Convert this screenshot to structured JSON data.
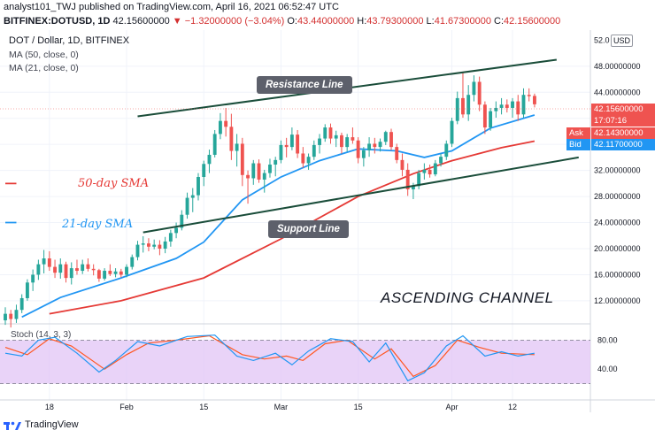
{
  "header": {
    "publish_line": "analyst101_TWJ published on TradingView.com, April 16, 2021 06:52:47 UTC",
    "symbol": "BITFINEX:DOTUSD, 1D",
    "last": "42.15600000",
    "arrow": "▼",
    "change": "−1.32000000 (−3.04%)",
    "o_label": "O:",
    "o": "43.44000000",
    "h_label": "H:",
    "h": "43.79300000",
    "l_label": "L:",
    "l": "41.67300000",
    "c_label": "C:",
    "c": "42.15600000"
  },
  "legend": {
    "title": "DOT / Dollar, 1D, BITFINEX",
    "ma50": "MA (50, close, 0)",
    "ma21": "MA (21, close, 0)"
  },
  "annotations": {
    "sma50": "50-day SMA",
    "sma21": "21-day SMA",
    "resistance": "Resistance Line",
    "support": "Support Line",
    "channel": "ASCENDING CHANNEL"
  },
  "axis": {
    "currency": "USD",
    "top_partial": "52.0",
    "price_ticks": [
      "48.00000000",
      "44.00000000",
      "40.00000000",
      "36.00000000",
      "32.00000000",
      "28.00000000",
      "24.00000000",
      "20.00000000",
      "16.00000000",
      "12.00000000"
    ],
    "date_ticks": [
      "18",
      "Feb",
      "15",
      "Mar",
      "15",
      "Apr",
      "12"
    ]
  },
  "tags": {
    "last": "42.15600000",
    "countdown": "17:07:16",
    "ask_label": "Ask",
    "ask": "42.14300000",
    "bid_label": "Bid",
    "bid": "42.11700000"
  },
  "stoch": {
    "label": "Stoch (14, 3, 3)",
    "ticks": [
      "80.00",
      "40.00"
    ],
    "upper": 80,
    "lower": 20
  },
  "footer": {
    "brand": "TradingView"
  },
  "colors": {
    "up": "#26a69a",
    "down": "#ef5350",
    "ma50": "#e53935",
    "ma21": "#2196f3",
    "trend": "#1a4d3a",
    "stoch_k": "#2196f3",
    "stoch_d": "#ff5722",
    "stoch_band": "#e1c4f5"
  },
  "chart_data": {
    "type": "candlestick",
    "title": "DOT / Dollar, 1D, BITFINEX",
    "ylim": [
      9,
      53
    ],
    "x_range": [
      "2021-01-10",
      "2021-04-25"
    ],
    "candles": [
      {
        "d": "2021-01-10",
        "o": 9.0,
        "h": 11.0,
        "l": 8.3,
        "c": 10.0
      },
      {
        "d": "2021-01-11",
        "o": 10.0,
        "h": 10.6,
        "l": 7.9,
        "c": 9.2
      },
      {
        "d": "2021-01-12",
        "o": 9.2,
        "h": 11.4,
        "l": 8.6,
        "c": 10.6
      },
      {
        "d": "2021-01-13",
        "o": 10.6,
        "h": 13.0,
        "l": 10.1,
        "c": 12.4
      },
      {
        "d": "2021-01-14",
        "o": 12.4,
        "h": 15.3,
        "l": 12.0,
        "c": 14.8
      },
      {
        "d": "2021-01-15",
        "o": 14.8,
        "h": 16.8,
        "l": 13.5,
        "c": 16.0
      },
      {
        "d": "2021-01-16",
        "o": 16.0,
        "h": 18.3,
        "l": 15.2,
        "c": 17.6
      },
      {
        "d": "2021-01-17",
        "o": 17.6,
        "h": 19.8,
        "l": 16.2,
        "c": 18.5
      },
      {
        "d": "2021-01-18",
        "o": 18.5,
        "h": 19.6,
        "l": 16.6,
        "c": 17.2
      },
      {
        "d": "2021-01-19",
        "o": 17.2,
        "h": 18.3,
        "l": 15.5,
        "c": 16.3
      },
      {
        "d": "2021-01-20",
        "o": 16.3,
        "h": 18.5,
        "l": 15.4,
        "c": 17.6
      },
      {
        "d": "2021-01-21",
        "o": 17.6,
        "h": 18.0,
        "l": 14.8,
        "c": 15.5
      },
      {
        "d": "2021-01-22",
        "o": 15.5,
        "h": 17.9,
        "l": 14.5,
        "c": 17.0
      },
      {
        "d": "2021-01-23",
        "o": 17.0,
        "h": 18.3,
        "l": 16.0,
        "c": 16.6
      },
      {
        "d": "2021-01-24",
        "o": 16.6,
        "h": 18.3,
        "l": 16.1,
        "c": 17.6
      },
      {
        "d": "2021-01-25",
        "o": 17.6,
        "h": 18.5,
        "l": 16.5,
        "c": 16.9
      },
      {
        "d": "2021-01-26",
        "o": 16.9,
        "h": 17.6,
        "l": 15.9,
        "c": 16.7
      },
      {
        "d": "2021-01-27",
        "o": 16.7,
        "h": 16.9,
        "l": 14.9,
        "c": 15.4
      },
      {
        "d": "2021-01-28",
        "o": 15.4,
        "h": 17.0,
        "l": 15.1,
        "c": 16.6
      },
      {
        "d": "2021-01-29",
        "o": 16.6,
        "h": 17.6,
        "l": 15.8,
        "c": 16.1
      },
      {
        "d": "2021-01-30",
        "o": 16.1,
        "h": 17.0,
        "l": 15.6,
        "c": 16.5
      },
      {
        "d": "2021-01-31",
        "o": 16.5,
        "h": 16.9,
        "l": 15.6,
        "c": 16.0
      },
      {
        "d": "2021-02-01",
        "o": 16.0,
        "h": 17.6,
        "l": 15.6,
        "c": 17.2
      },
      {
        "d": "2021-02-02",
        "o": 17.2,
        "h": 19.1,
        "l": 16.8,
        "c": 18.7
      },
      {
        "d": "2021-02-03",
        "o": 18.7,
        "h": 21.2,
        "l": 18.2,
        "c": 20.6
      },
      {
        "d": "2021-02-04",
        "o": 20.6,
        "h": 21.9,
        "l": 19.4,
        "c": 20.8
      },
      {
        "d": "2021-02-05",
        "o": 20.8,
        "h": 21.6,
        "l": 19.6,
        "c": 20.3
      },
      {
        "d": "2021-02-06",
        "o": 20.3,
        "h": 21.4,
        "l": 19.9,
        "c": 20.6
      },
      {
        "d": "2021-02-07",
        "o": 20.6,
        "h": 21.3,
        "l": 19.0,
        "c": 20.0
      },
      {
        "d": "2021-02-08",
        "o": 20.0,
        "h": 21.8,
        "l": 19.3,
        "c": 21.1
      },
      {
        "d": "2021-02-09",
        "o": 21.1,
        "h": 22.9,
        "l": 20.3,
        "c": 22.4
      },
      {
        "d": "2021-02-10",
        "o": 22.4,
        "h": 24.0,
        "l": 21.6,
        "c": 23.2
      },
      {
        "d": "2021-02-11",
        "o": 23.2,
        "h": 25.9,
        "l": 22.8,
        "c": 25.2
      },
      {
        "d": "2021-02-12",
        "o": 25.2,
        "h": 28.6,
        "l": 24.6,
        "c": 27.8
      },
      {
        "d": "2021-02-13",
        "o": 27.8,
        "h": 29.3,
        "l": 25.6,
        "c": 28.2
      },
      {
        "d": "2021-02-14",
        "o": 28.2,
        "h": 31.6,
        "l": 27.4,
        "c": 31.0
      },
      {
        "d": "2021-02-15",
        "o": 31.0,
        "h": 33.5,
        "l": 29.6,
        "c": 33.0
      },
      {
        "d": "2021-02-16",
        "o": 33.0,
        "h": 35.2,
        "l": 31.6,
        "c": 34.4
      },
      {
        "d": "2021-02-17",
        "o": 34.4,
        "h": 38.2,
        "l": 34.0,
        "c": 37.6
      },
      {
        "d": "2021-02-18",
        "o": 37.6,
        "h": 40.8,
        "l": 36.8,
        "c": 39.6
      },
      {
        "d": "2021-02-19",
        "o": 39.6,
        "h": 41.6,
        "l": 37.2,
        "c": 38.7
      },
      {
        "d": "2021-02-20",
        "o": 38.7,
        "h": 40.7,
        "l": 33.6,
        "c": 35.0
      },
      {
        "d": "2021-02-21",
        "o": 35.0,
        "h": 37.6,
        "l": 32.6,
        "c": 36.1
      },
      {
        "d": "2021-02-22",
        "o": 36.1,
        "h": 37.0,
        "l": 29.6,
        "c": 31.3
      },
      {
        "d": "2021-02-23",
        "o": 31.3,
        "h": 32.0,
        "l": 26.9,
        "c": 30.8
      },
      {
        "d": "2021-02-24",
        "o": 30.8,
        "h": 33.6,
        "l": 29.8,
        "c": 33.1
      },
      {
        "d": "2021-02-25",
        "o": 33.1,
        "h": 33.7,
        "l": 30.1,
        "c": 30.6
      },
      {
        "d": "2021-02-26",
        "o": 30.6,
        "h": 32.1,
        "l": 28.6,
        "c": 31.6
      },
      {
        "d": "2021-02-27",
        "o": 31.6,
        "h": 33.8,
        "l": 30.9,
        "c": 32.9
      },
      {
        "d": "2021-02-28",
        "o": 32.9,
        "h": 34.1,
        "l": 31.1,
        "c": 33.6
      },
      {
        "d": "2021-03-01",
        "o": 33.6,
        "h": 36.6,
        "l": 33.1,
        "c": 35.9
      },
      {
        "d": "2021-03-02",
        "o": 35.9,
        "h": 37.0,
        "l": 34.0,
        "c": 35.6
      },
      {
        "d": "2021-03-03",
        "o": 35.6,
        "h": 38.6,
        "l": 35.1,
        "c": 37.5
      },
      {
        "d": "2021-03-04",
        "o": 37.5,
        "h": 38.2,
        "l": 33.9,
        "c": 34.6
      },
      {
        "d": "2021-03-05",
        "o": 34.6,
        "h": 35.6,
        "l": 32.4,
        "c": 33.1
      },
      {
        "d": "2021-03-06",
        "o": 33.1,
        "h": 34.6,
        "l": 32.1,
        "c": 34.1
      },
      {
        "d": "2021-03-07",
        "o": 34.1,
        "h": 36.6,
        "l": 33.6,
        "c": 35.9
      },
      {
        "d": "2021-03-08",
        "o": 35.9,
        "h": 37.6,
        "l": 34.6,
        "c": 36.9
      },
      {
        "d": "2021-03-09",
        "o": 36.9,
        "h": 39.1,
        "l": 36.4,
        "c": 38.6
      },
      {
        "d": "2021-03-10",
        "o": 38.6,
        "h": 39.2,
        "l": 36.1,
        "c": 36.9
      },
      {
        "d": "2021-03-11",
        "o": 36.9,
        "h": 38.1,
        "l": 35.6,
        "c": 37.4
      },
      {
        "d": "2021-03-12",
        "o": 37.4,
        "h": 37.8,
        "l": 34.6,
        "c": 35.6
      },
      {
        "d": "2021-03-13",
        "o": 35.6,
        "h": 37.6,
        "l": 34.9,
        "c": 37.1
      },
      {
        "d": "2021-03-14",
        "o": 37.1,
        "h": 38.6,
        "l": 36.1,
        "c": 36.6
      },
      {
        "d": "2021-03-15",
        "o": 36.6,
        "h": 37.1,
        "l": 33.1,
        "c": 33.9
      },
      {
        "d": "2021-03-16",
        "o": 33.9,
        "h": 35.6,
        "l": 32.6,
        "c": 35.1
      },
      {
        "d": "2021-03-17",
        "o": 35.1,
        "h": 37.1,
        "l": 34.1,
        "c": 36.1
      },
      {
        "d": "2021-03-18",
        "o": 36.1,
        "h": 37.0,
        "l": 34.6,
        "c": 35.6
      },
      {
        "d": "2021-03-19",
        "o": 35.6,
        "h": 36.9,
        "l": 34.9,
        "c": 36.4
      },
      {
        "d": "2021-03-20",
        "o": 36.4,
        "h": 38.1,
        "l": 35.9,
        "c": 37.9
      },
      {
        "d": "2021-03-21",
        "o": 37.9,
        "h": 38.4,
        "l": 35.1,
        "c": 35.6
      },
      {
        "d": "2021-03-22",
        "o": 35.6,
        "h": 36.1,
        "l": 33.1,
        "c": 33.6
      },
      {
        "d": "2021-03-23",
        "o": 33.6,
        "h": 34.6,
        "l": 31.1,
        "c": 32.1
      },
      {
        "d": "2021-03-24",
        "o": 32.1,
        "h": 33.1,
        "l": 28.1,
        "c": 29.1
      },
      {
        "d": "2021-03-25",
        "o": 29.1,
        "h": 30.1,
        "l": 27.6,
        "c": 29.6
      },
      {
        "d": "2021-03-26",
        "o": 29.6,
        "h": 32.1,
        "l": 29.1,
        "c": 31.6
      },
      {
        "d": "2021-03-27",
        "o": 31.6,
        "h": 33.1,
        "l": 30.6,
        "c": 32.1
      },
      {
        "d": "2021-03-28",
        "o": 32.1,
        "h": 32.9,
        "l": 30.9,
        "c": 31.4
      },
      {
        "d": "2021-03-29",
        "o": 31.4,
        "h": 33.6,
        "l": 31.1,
        "c": 33.1
      },
      {
        "d": "2021-03-30",
        "o": 33.1,
        "h": 34.6,
        "l": 32.6,
        "c": 34.1
      },
      {
        "d": "2021-03-31",
        "o": 34.1,
        "h": 36.6,
        "l": 33.6,
        "c": 36.1
      },
      {
        "d": "2021-04-01",
        "o": 36.1,
        "h": 40.1,
        "l": 35.6,
        "c": 39.6
      },
      {
        "d": "2021-04-02",
        "o": 39.6,
        "h": 44.1,
        "l": 39.1,
        "c": 43.1
      },
      {
        "d": "2021-04-03",
        "o": 43.1,
        "h": 47.0,
        "l": 40.1,
        "c": 40.6
      },
      {
        "d": "2021-04-04",
        "o": 40.6,
        "h": 45.1,
        "l": 39.6,
        "c": 43.6
      },
      {
        "d": "2021-04-05",
        "o": 43.6,
        "h": 46.6,
        "l": 42.6,
        "c": 45.6
      },
      {
        "d": "2021-04-06",
        "o": 45.6,
        "h": 46.4,
        "l": 41.1,
        "c": 42.1
      },
      {
        "d": "2021-04-07",
        "o": 42.1,
        "h": 42.6,
        "l": 37.6,
        "c": 38.6
      },
      {
        "d": "2021-04-08",
        "o": 38.6,
        "h": 41.6,
        "l": 38.1,
        "c": 41.1
      },
      {
        "d": "2021-04-09",
        "o": 41.1,
        "h": 42.6,
        "l": 40.1,
        "c": 41.6
      },
      {
        "d": "2021-04-10",
        "o": 41.6,
        "h": 43.1,
        "l": 40.6,
        "c": 42.1
      },
      {
        "d": "2021-04-11",
        "o": 42.1,
        "h": 42.9,
        "l": 40.9,
        "c": 41.6
      },
      {
        "d": "2021-04-12",
        "o": 41.6,
        "h": 43.1,
        "l": 40.1,
        "c": 42.6
      },
      {
        "d": "2021-04-13",
        "o": 42.6,
        "h": 43.6,
        "l": 39.6,
        "c": 40.6
      },
      {
        "d": "2021-04-14",
        "o": 40.6,
        "h": 44.6,
        "l": 40.1,
        "c": 43.6
      },
      {
        "d": "2021-04-15",
        "o": 43.6,
        "h": 44.6,
        "l": 42.6,
        "c": 43.4
      },
      {
        "d": "2021-04-16",
        "o": 43.44,
        "h": 43.793,
        "l": 41.673,
        "c": 42.156
      }
    ],
    "ma50": [
      {
        "d": "2021-01-10",
        "v": 30.0
      },
      {
        "d": "2021-01-12",
        "v": 30.0
      },
      {
        "d": "2021-01-18",
        "v": 10.0
      },
      {
        "d": "2021-01-31",
        "v": 12.0
      },
      {
        "d": "2021-02-15",
        "v": 15.5
      },
      {
        "d": "2021-03-01",
        "v": 21.5
      },
      {
        "d": "2021-03-15",
        "v": 28.0
      },
      {
        "d": "2021-03-25",
        "v": 31.5
      },
      {
        "d": "2021-04-01",
        "v": 33.5
      },
      {
        "d": "2021-04-10",
        "v": 35.5
      },
      {
        "d": "2021-04-16",
        "v": 36.5
      }
    ],
    "ma21": [
      {
        "d": "2021-01-10",
        "v": 24.0
      },
      {
        "d": "2021-01-12",
        "v": 24.0
      },
      {
        "d": "2021-01-13",
        "v": 9.5
      },
      {
        "d": "2021-01-20",
        "v": 12.5
      },
      {
        "d": "2021-01-31",
        "v": 15.5
      },
      {
        "d": "2021-02-10",
        "v": 18.5
      },
      {
        "d": "2021-02-15",
        "v": 21.0
      },
      {
        "d": "2021-02-22",
        "v": 27.5
      },
      {
        "d": "2021-03-01",
        "v": 31.0
      },
      {
        "d": "2021-03-08",
        "v": 33.5
      },
      {
        "d": "2021-03-15",
        "v": 35.3
      },
      {
        "d": "2021-03-22",
        "v": 35.0
      },
      {
        "d": "2021-03-27",
        "v": 34.0
      },
      {
        "d": "2021-04-01",
        "v": 35.0
      },
      {
        "d": "2021-04-08",
        "v": 38.5
      },
      {
        "d": "2021-04-16",
        "v": 40.5
      }
    ],
    "resistance": [
      {
        "d": "2021-02-03",
        "v": 40.3
      },
      {
        "d": "2021-04-20",
        "v": 49.0
      }
    ],
    "support": [
      {
        "d": "2021-02-04",
        "v": 22.5
      },
      {
        "d": "2021-04-24",
        "v": 34.0
      }
    ],
    "stoch_k": [
      {
        "d": "2021-01-10",
        "v": 62
      },
      {
        "d": "2021-01-13",
        "v": 58
      },
      {
        "d": "2021-01-16",
        "v": 80
      },
      {
        "d": "2021-01-19",
        "v": 84
      },
      {
        "d": "2021-01-23",
        "v": 62
      },
      {
        "d": "2021-01-27",
        "v": 36
      },
      {
        "d": "2021-01-30",
        "v": 52
      },
      {
        "d": "2021-02-03",
        "v": 78
      },
      {
        "d": "2021-02-07",
        "v": 72
      },
      {
        "d": "2021-02-12",
        "v": 85
      },
      {
        "d": "2021-02-17",
        "v": 87
      },
      {
        "d": "2021-02-21",
        "v": 58
      },
      {
        "d": "2021-02-24",
        "v": 52
      },
      {
        "d": "2021-02-28",
        "v": 62
      },
      {
        "d": "2021-03-03",
        "v": 46
      },
      {
        "d": "2021-03-06",
        "v": 65
      },
      {
        "d": "2021-03-10",
        "v": 82
      },
      {
        "d": "2021-03-14",
        "v": 78
      },
      {
        "d": "2021-03-17",
        "v": 50
      },
      {
        "d": "2021-03-20",
        "v": 76
      },
      {
        "d": "2021-03-24",
        "v": 24
      },
      {
        "d": "2021-03-27",
        "v": 35
      },
      {
        "d": "2021-03-31",
        "v": 72
      },
      {
        "d": "2021-04-03",
        "v": 86
      },
      {
        "d": "2021-04-07",
        "v": 58
      },
      {
        "d": "2021-04-10",
        "v": 64
      },
      {
        "d": "2021-04-13",
        "v": 58
      },
      {
        "d": "2021-04-16",
        "v": 62
      }
    ],
    "stoch_d": [
      {
        "d": "2021-01-10",
        "v": 70
      },
      {
        "d": "2021-01-14",
        "v": 60
      },
      {
        "d": "2021-01-18",
        "v": 82
      },
      {
        "d": "2021-01-22",
        "v": 72
      },
      {
        "d": "2021-01-28",
        "v": 40
      },
      {
        "d": "2021-02-01",
        "v": 60
      },
      {
        "d": "2021-02-05",
        "v": 76
      },
      {
        "d": "2021-02-10",
        "v": 80
      },
      {
        "d": "2021-02-16",
        "v": 86
      },
      {
        "d": "2021-02-22",
        "v": 60
      },
      {
        "d": "2021-02-26",
        "v": 54
      },
      {
        "d": "2021-03-02",
        "v": 58
      },
      {
        "d": "2021-03-05",
        "v": 52
      },
      {
        "d": "2021-03-09",
        "v": 75
      },
      {
        "d": "2021-03-13",
        "v": 80
      },
      {
        "d": "2021-03-18",
        "v": 54
      },
      {
        "d": "2021-03-21",
        "v": 68
      },
      {
        "d": "2021-03-25",
        "v": 30
      },
      {
        "d": "2021-03-29",
        "v": 45
      },
      {
        "d": "2021-04-02",
        "v": 80
      },
      {
        "d": "2021-04-06",
        "v": 70
      },
      {
        "d": "2021-04-10",
        "v": 62
      },
      {
        "d": "2021-04-16",
        "v": 60
      }
    ]
  }
}
